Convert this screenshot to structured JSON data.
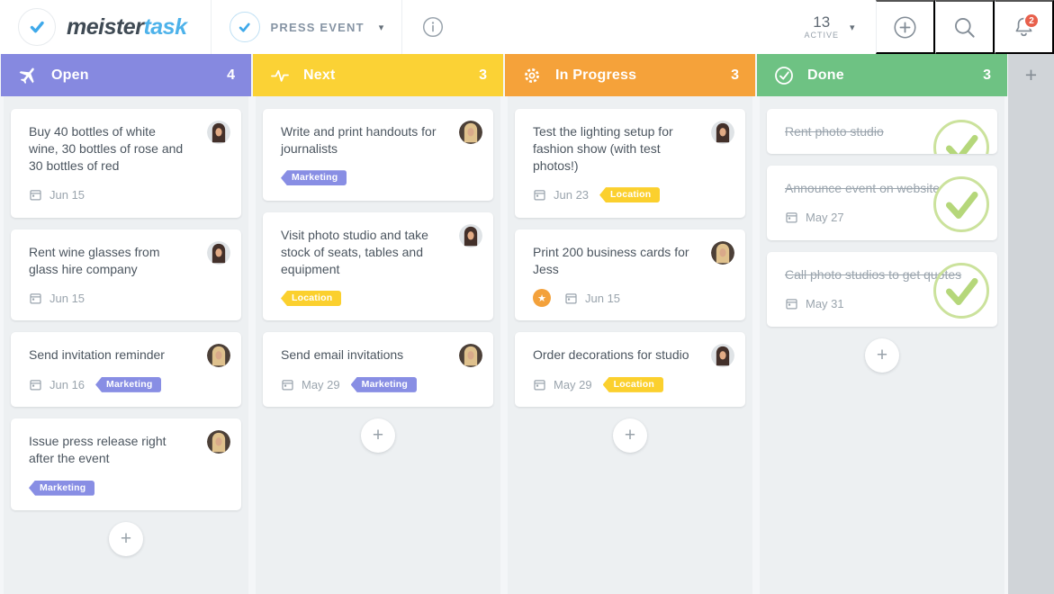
{
  "header": {
    "logo": {
      "brand_first": "meister",
      "brand_second": "task"
    },
    "project": {
      "name": "PRESS EVENT"
    },
    "active": {
      "count": "13",
      "label": "ACTIVE"
    },
    "notifications": {
      "badge": "2"
    }
  },
  "icons": {
    "logo": "check-circle",
    "project": "check-circle",
    "info": "info-circle",
    "add": "plus-circle",
    "search": "magnifier",
    "notifications": "bell",
    "due": "calendar",
    "priority": "star",
    "done": "check-circle"
  },
  "colors": {
    "open": "#8689e0",
    "next": "#fbd235",
    "in_progress": "#f5a23a",
    "done": "#6ec283",
    "tag_marketing": "#888ee4",
    "tag_location": "#fbd02e",
    "badge_red": "#e8604c",
    "brand_blue": "#4db2ea",
    "done_check_green": "#b5d77a"
  },
  "board": {
    "add_card_label": "+",
    "add_column_label": "+",
    "columns": [
      {
        "title": "Open",
        "count": "4",
        "color": "#8689e0",
        "icon": "plane",
        "cards": [
          {
            "title": "Buy 40 bottles of white wine, 30 bottles of rose and 30 bottles of red",
            "avatar": "dark-haired-woman",
            "due": "Jun 15"
          },
          {
            "title": "Rent wine glasses from glass hire company",
            "avatar": "dark-haired-woman",
            "due": "Jun 15"
          },
          {
            "title": "Send invitation reminder",
            "avatar": "blonde-woman",
            "due": "Jun 16",
            "tag": {
              "label": "Marketing",
              "color": "#888ee4"
            }
          },
          {
            "title": "Issue press release right after the event",
            "avatar": "blonde-woman",
            "tag": {
              "label": "Marketing",
              "color": "#888ee4"
            }
          }
        ]
      },
      {
        "title": "Next",
        "count": "3",
        "color": "#fbd235",
        "icon": "pulse",
        "cards": [
          {
            "title": "Write and print handouts for journalists",
            "avatar": "blonde-woman",
            "tag": {
              "label": "Marketing",
              "color": "#888ee4"
            }
          },
          {
            "title": "Visit photo studio and take stock of seats, tables and equipment",
            "avatar": "dark-haired-woman",
            "tag": {
              "label": "Location",
              "color": "#fbd02e"
            }
          },
          {
            "title": "Send email invitations",
            "avatar": "blonde-woman",
            "due": "May 29",
            "tag": {
              "label": "Marketing",
              "color": "#888ee4"
            }
          }
        ]
      },
      {
        "title": "In Progress",
        "count": "3",
        "color": "#f5a23a",
        "icon": "gear",
        "cards": [
          {
            "title": "Test the lighting setup for fashion show (with test photos!)",
            "avatar": "dark-haired-woman",
            "due": "Jun 23",
            "tag": {
              "label": "Location",
              "color": "#fbd02e"
            }
          },
          {
            "title": "Print 200 business cards for Jess",
            "avatar": "blonde-woman",
            "star": true,
            "due": "Jun 15"
          },
          {
            "title": "Order decorations for studio",
            "avatar": "dark-haired-woman",
            "due": "May 29",
            "tag": {
              "label": "Location",
              "color": "#fbd02e"
            }
          }
        ]
      },
      {
        "title": "Done",
        "count": "3",
        "color": "#6ec283",
        "icon": "check",
        "cards": [
          {
            "title": "Rent photo studio",
            "done": true
          },
          {
            "title": "Announce event on website",
            "done": true,
            "due": "May 27"
          },
          {
            "title": "Call photo studios to get quotes",
            "done": true,
            "due": "May 31"
          }
        ]
      }
    ]
  }
}
